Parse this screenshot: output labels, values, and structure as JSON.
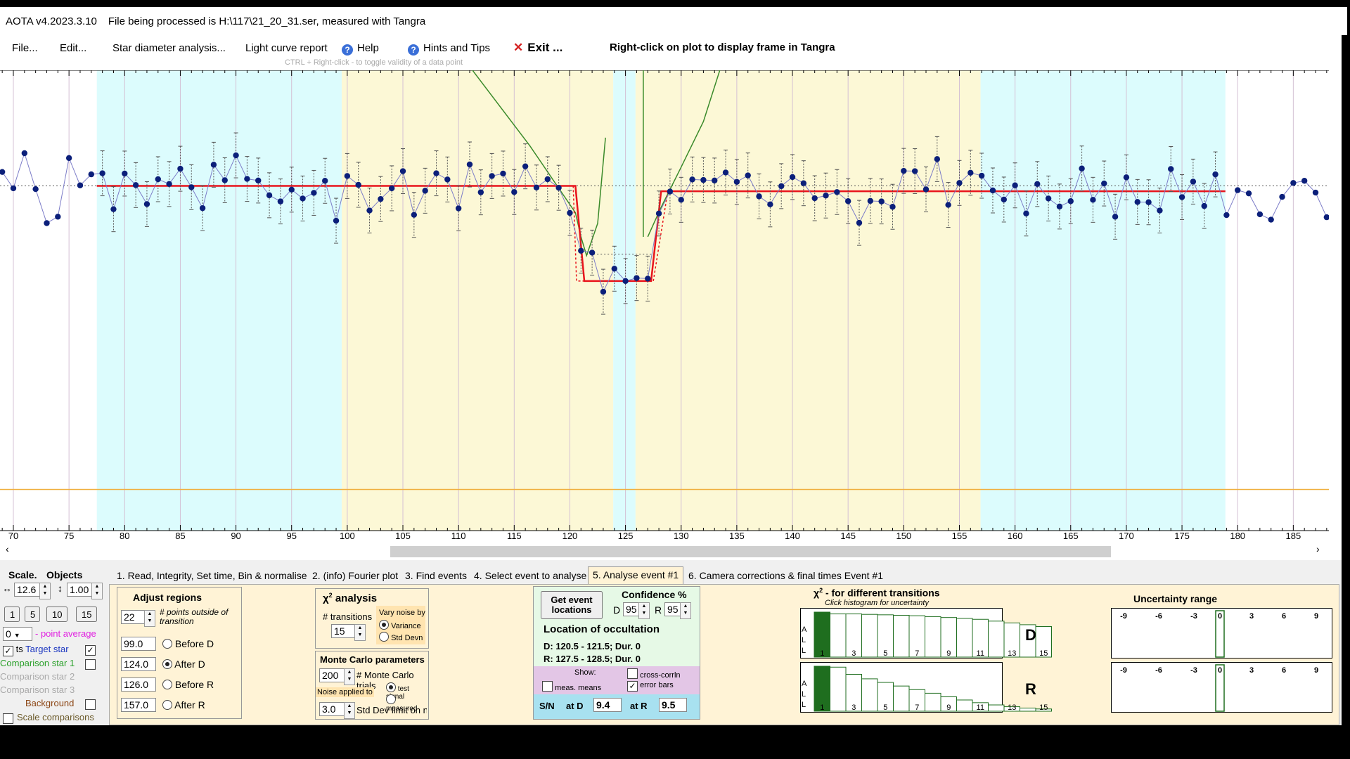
{
  "window": {
    "app_version": "AOTA v4.2023.3.10",
    "file_info": "File being processed is H:\\117\\21_20_31.ser, measured with Tangra"
  },
  "menu": {
    "file": "File...",
    "edit": "Edit...",
    "star_diameter": "Star diameter analysis...",
    "light_curve": "Light curve report",
    "help": "Help",
    "hints": "Hints and Tips",
    "exit": "Exit ...",
    "right_click_hint": "Right-click on plot to display frame in Tangra",
    "ctrl_hint": "CTRL + Right-click  -  to toggle validity of a data point"
  },
  "icons": {
    "help": "question-circle-icon",
    "exit": "x-close-icon"
  },
  "colors": {
    "cyan_region": "#dcfcfd",
    "yellow_region": "#fcf8d6",
    "data_point": "#0b1f7a",
    "model": "#e8141c",
    "chi_curve": "#3a8a2a",
    "baseline": "#f0b040",
    "panel_bg": "#fff3d6",
    "histogram_bar": "#1f6e1f"
  },
  "chart_data": {
    "type": "scatter",
    "title": "",
    "xlabel": "",
    "ylabel": "",
    "x_ticks": [
      "70",
      "75",
      "80",
      "85",
      "90",
      "95",
      "100",
      "105",
      "110",
      "115",
      "120",
      "125",
      "130",
      "135",
      "140",
      "145",
      "150",
      "155",
      "160",
      "165",
      "170",
      "175",
      "180",
      "185"
    ],
    "xlim": [
      68.8,
      188.2
    ],
    "ylim": [
      -0.2,
      1.4
    ],
    "grid": true,
    "regions": [
      {
        "kind": "cyan",
        "from": 77.5,
        "to": 99.5
      },
      {
        "kind": "yellow",
        "from": 99.5,
        "to": 123.9
      },
      {
        "kind": "cyan",
        "from": 123.9,
        "to": 125.9
      },
      {
        "kind": "yellow",
        "from": 125.9,
        "to": 156.9
      },
      {
        "kind": "cyan",
        "from": 156.9,
        "to": 178.9
      }
    ],
    "series": [
      {
        "values": [
          [
            69,
            1.052
          ],
          [
            70,
            0.991
          ],
          [
            71,
            1.122
          ],
          [
            72,
            0.988
          ],
          [
            73,
            0.861
          ],
          [
            74,
            0.885
          ],
          [
            75,
            1.104
          ],
          [
            76,
            1.002
          ],
          [
            77,
            1.043
          ],
          [
            78,
            1.047
          ],
          [
            79,
            0.913
          ],
          [
            80,
            1.046
          ],
          [
            81,
            1.003
          ],
          [
            82,
            0.932
          ],
          [
            83,
            1.025
          ],
          [
            84,
            1.007
          ],
          [
            85,
            1.064
          ],
          [
            86,
            0.995
          ],
          [
            87,
            0.917
          ],
          [
            88,
            1.079
          ],
          [
            89,
            1.021
          ],
          [
            90,
            1.114
          ],
          [
            91,
            1.026
          ],
          [
            92,
            1.02
          ],
          [
            93,
            0.965
          ],
          [
            94,
            0.942
          ],
          [
            95,
            0.986
          ],
          [
            96,
            0.953
          ],
          [
            97,
            0.974
          ],
          [
            98,
            1.019
          ],
          [
            99,
            0.87
          ],
          [
            100,
            1.037
          ],
          [
            101,
            1.004
          ],
          [
            102,
            0.908
          ],
          [
            103,
            0.951
          ],
          [
            104,
            0.991
          ],
          [
            105,
            1.055
          ],
          [
            106,
            0.892
          ],
          [
            107,
            0.982
          ],
          [
            108,
            1.047
          ],
          [
            109,
            1.024
          ],
          [
            110,
            0.916
          ],
          [
            111,
            1.08
          ],
          [
            112,
            0.976
          ],
          [
            113,
            1.037
          ],
          [
            114,
            1.046
          ],
          [
            115,
            0.977
          ],
          [
            116,
            1.073
          ],
          [
            117,
            0.994
          ],
          [
            118,
            1.025
          ],
          [
            119,
            0.993
          ],
          [
            120,
            0.899
          ],
          [
            121,
            0.758
          ],
          [
            122,
            0.751
          ],
          [
            123,
            0.605
          ],
          [
            124,
            0.691
          ],
          [
            125,
            0.645
          ],
          [
            126,
            0.656
          ],
          [
            127,
            0.654
          ],
          [
            128,
            0.897
          ],
          [
            129,
            0.979
          ],
          [
            130,
            0.948
          ],
          [
            131,
            1.024
          ],
          [
            132,
            1.022
          ],
          [
            133,
            1.02
          ],
          [
            134,
            1.05
          ],
          [
            135,
            1.015
          ],
          [
            136,
            1.039
          ],
          [
            137,
            0.961
          ],
          [
            138,
            0.931
          ],
          [
            139,
            0.999
          ],
          [
            140,
            1.033
          ],
          [
            141,
            1.01
          ],
          [
            142,
            0.954
          ],
          [
            143,
            0.964
          ],
          [
            144,
            0.977
          ],
          [
            145,
            0.943
          ],
          [
            146,
            0.862
          ],
          [
            147,
            0.944
          ],
          [
            148,
            0.942
          ],
          [
            149,
            0.922
          ],
          [
            150,
            1.056
          ],
          [
            151,
            1.055
          ],
          [
            152,
            0.987
          ],
          [
            153,
            1.1
          ],
          [
            154,
            0.929
          ],
          [
            155,
            1.011
          ],
          [
            156,
            1.049
          ],
          [
            157,
            1.038
          ],
          [
            158,
            0.983
          ],
          [
            159,
            0.949
          ],
          [
            160,
            1.002
          ],
          [
            161,
            0.897
          ],
          [
            162,
            1.007
          ],
          [
            163,
            0.953
          ],
          [
            164,
            0.923
          ],
          [
            165,
            0.943
          ],
          [
            166,
            1.065
          ],
          [
            167,
            0.948
          ],
          [
            168,
            1.009
          ],
          [
            169,
            0.885
          ],
          [
            170,
            1.032
          ],
          [
            171,
            0.94
          ],
          [
            172,
            0.939
          ],
          [
            173,
            0.908
          ],
          [
            174,
            1.063
          ],
          [
            175,
            0.958
          ],
          [
            176,
            1.016
          ],
          [
            177,
            0.925
          ],
          [
            178,
            1.043
          ],
          [
            179,
            0.891
          ],
          [
            180,
            0.984
          ],
          [
            181,
            0.972
          ],
          [
            182,
            0.894
          ],
          [
            183,
            0.874
          ],
          [
            184,
            0.959
          ],
          [
            185,
            1.011
          ],
          [
            186,
            1.019
          ],
          [
            187,
            0.975
          ],
          [
            188,
            0.883
          ]
        ]
      }
    ],
    "model_levels": {
      "before_d": 1.0,
      "event": 0.645,
      "after_r": 0.98,
      "d_frame": 121,
      "r_frame": 128
    }
  },
  "bottom": {
    "scale_label": "Scale.",
    "objects_label": "Objects",
    "scale_value": "12.6",
    "y_scale_value": "1.00",
    "zoom_buttons": [
      "1",
      "5",
      "10",
      "15"
    ],
    "point_average_value": "0",
    "point_average_label": "- point average",
    "pts_label": "ts",
    "target_star_label": "Target star",
    "comp1_label": "Comparison star 1",
    "comp2_label": "Comparison star 2",
    "comp3_label": "Comparison star 3",
    "background_label": "Background",
    "scale_comparisons_label": "Scale comparisons",
    "tabs": [
      "1.  Read, Integrity, Set time, Bin & normalise",
      "2. (info)  Fourier plot",
      "3. Find events",
      "4. Select event to analyse",
      "5. Analyse event #1",
      "6. Camera corrections & final times Event #1"
    ],
    "adjust": {
      "title": "Adjust regions",
      "points_value": "22",
      "points_label": "# points outside of transition",
      "before_d_value": "99.0",
      "before_d_label": "Before D",
      "after_d_value": "124.0",
      "after_d_label": "After D",
      "before_r_value": "126.0",
      "before_r_label": "Before R",
      "after_r_value": "157.0",
      "after_r_label": "After R"
    },
    "chi": {
      "title": "analysis",
      "chi_symbol": "χ",
      "sup": "2",
      "transitions_label": "# transitions",
      "transitions_value": "15",
      "vary_noise_label": "Vary noise by",
      "variance_label": "Variance",
      "std_devn_label": "Std Devn"
    },
    "monte": {
      "title": "Monte Carlo parameters",
      "trials_value": "200",
      "trials_label": "# Monte Carlo trials",
      "noise_applied_label": "Noise applied to",
      "test_signal_label": "test signal",
      "measured_label": "measured",
      "std_limit_value": "3.0",
      "std_limit_label": "Std Dev limit on noise"
    },
    "location": {
      "get_button": "Get event locations",
      "confidence_label": "Confidence %",
      "d_letter": "D",
      "d_conf": "95",
      "r_letter": "R",
      "r_conf": "95",
      "title": "Location of occultation",
      "d_line": "D: 120.5 - 121.5; Dur. 0",
      "r_line": "R: 127.5 - 128.5; Dur. 0",
      "show_label": "Show:",
      "cross_corr_label": "cross-corrln",
      "meas_means_label": "meas. means",
      "error_bars_label": "error bars",
      "sn_label": "S/N",
      "at_d_label": "at D",
      "at_d_value": "9.4",
      "at_r_label": "at R",
      "at_r_value": "9.5"
    },
    "histogram": {
      "title": "- for different transitions",
      "subtitle": "Click histogram for uncertainty",
      "all_letters": [
        "A",
        "L",
        "L"
      ],
      "tick_labels": [
        "1",
        "3",
        "5",
        "7",
        "9",
        "11",
        "13",
        "15"
      ],
      "d_label": "D",
      "r_label": "R",
      "d_values": [
        1.0,
        0.96,
        0.96,
        0.95,
        0.94,
        0.93,
        0.92,
        0.9,
        0.88,
        0.86,
        0.84,
        0.8,
        0.76,
        0.72,
        0.68
      ],
      "r_values": [
        1.0,
        0.98,
        0.82,
        0.72,
        0.64,
        0.56,
        0.48,
        0.4,
        0.32,
        0.25,
        0.19,
        0.14,
        0.1,
        0.07,
        0.05
      ]
    },
    "uncertainty": {
      "title": "Uncertainty range",
      "ticks": [
        "-9",
        "-6",
        "-3",
        "0",
        "3",
        "6",
        "9"
      ]
    }
  }
}
